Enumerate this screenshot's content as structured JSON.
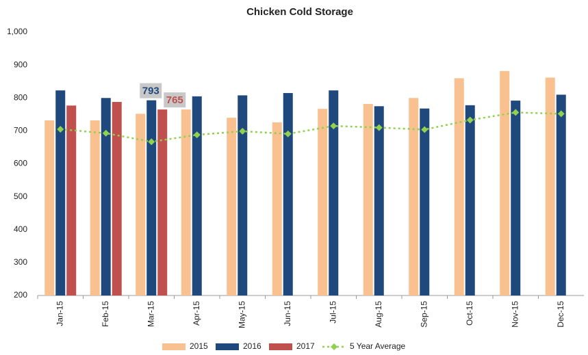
{
  "chart_data": {
    "type": "bar",
    "title": "Chicken Cold Storage",
    "categories": [
      "Jan-15",
      "Feb-15",
      "Mar-15",
      "Apr-15",
      "May-15",
      "Jun-15",
      "Jul-15",
      "Aug-15",
      "Sep-15",
      "Oct-15",
      "Nov-15",
      "Dec-15"
    ],
    "series": [
      {
        "name": "2015",
        "color": "#f9c190",
        "type": "bar",
        "values": [
          732,
          732,
          752,
          765,
          740,
          726,
          767,
          782,
          800,
          860,
          882,
          862
        ]
      },
      {
        "name": "2016",
        "color": "#1f487c",
        "type": "bar",
        "values": [
          823,
          800,
          793,
          805,
          808,
          815,
          823,
          775,
          768,
          778,
          792,
          810
        ],
        "data_labels": [
          2
        ]
      },
      {
        "name": "2017",
        "color": "#c0504d",
        "type": "bar",
        "values": [
          777,
          788,
          765,
          null,
          null,
          null,
          null,
          null,
          null,
          null,
          null,
          null
        ],
        "data_labels": [
          2
        ]
      },
      {
        "name": "5 Year Average",
        "color": "#92d050",
        "type": "line",
        "values": [
          705,
          693,
          667,
          688,
          699,
          691,
          715,
          710,
          704,
          733,
          756,
          752
        ]
      }
    ],
    "ylim": [
      200,
      1000
    ],
    "yticks": [
      200,
      300,
      400,
      500,
      600,
      700,
      800,
      900,
      {
        "value": 1000,
        "label": "1,000"
      }
    ],
    "grid": false,
    "legend": "bottom"
  }
}
